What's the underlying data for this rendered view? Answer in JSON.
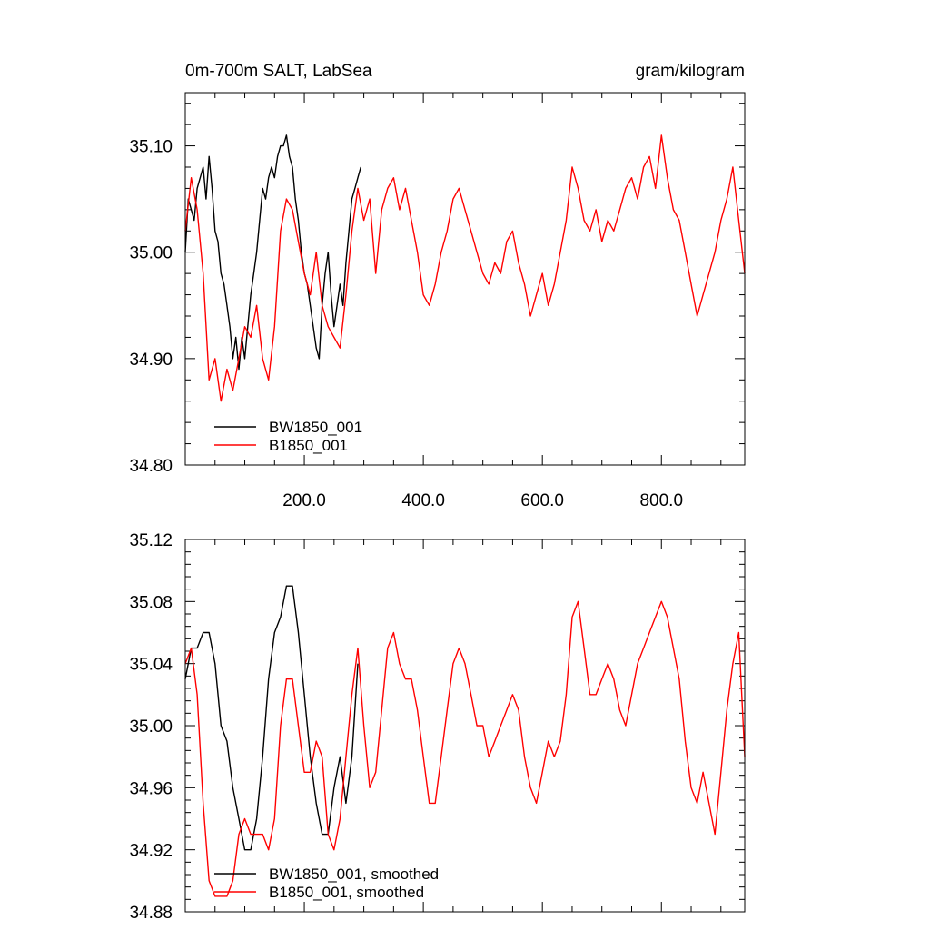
{
  "chart_data": [
    {
      "type": "line",
      "title_left": "0m-700m SALT, LabSea",
      "title_right": "gram/kilogram",
      "xlim": [
        0,
        940
      ],
      "ylim": [
        34.8,
        35.15
      ],
      "x_tick_labels": [
        "200.0",
        "400.0",
        "600.0",
        "800.0"
      ],
      "x_ticks": [
        200,
        400,
        600,
        800
      ],
      "y_tick_labels": [
        "34.80",
        "34.90",
        "35.00",
        "35.10"
      ],
      "y_ticks": [
        34.8,
        34.9,
        35.0,
        35.1
      ],
      "legend_position": "bottom-left",
      "series": [
        {
          "name": "BW1850_001",
          "color": "#000000",
          "x": [
            0,
            5,
            10,
            15,
            20,
            25,
            30,
            35,
            40,
            45,
            50,
            55,
            60,
            65,
            70,
            75,
            80,
            85,
            90,
            95,
            100,
            105,
            110,
            115,
            120,
            125,
            130,
            135,
            140,
            145,
            150,
            155,
            160,
            165,
            170,
            175,
            180,
            185,
            190,
            195,
            200,
            205,
            210,
            215,
            220,
            225,
            230,
            235,
            240,
            245,
            250,
            255,
            260,
            265,
            270,
            275,
            280,
            285,
            290,
            295
          ],
          "values": [
            35.0,
            35.05,
            35.04,
            35.03,
            35.06,
            35.07,
            35.08,
            35.05,
            35.09,
            35.06,
            35.02,
            35.01,
            34.98,
            34.97,
            34.95,
            34.93,
            34.9,
            34.92,
            34.89,
            34.92,
            34.9,
            34.93,
            34.96,
            34.98,
            35.0,
            35.03,
            35.06,
            35.05,
            35.07,
            35.08,
            35.07,
            35.09,
            35.1,
            35.1,
            35.11,
            35.09,
            35.08,
            35.05,
            35.03,
            35.0,
            34.98,
            34.97,
            34.95,
            34.93,
            34.91,
            34.9,
            34.95,
            34.98,
            35.0,
            34.96,
            34.93,
            34.95,
            34.97,
            34.95,
            34.99,
            35.02,
            35.05,
            35.06,
            35.07,
            35.08
          ]
        },
        {
          "name": "B1850_001",
          "color": "#ff0000",
          "x": [
            0,
            10,
            20,
            30,
            40,
            50,
            60,
            70,
            80,
            90,
            100,
            110,
            120,
            130,
            140,
            150,
            160,
            170,
            180,
            190,
            200,
            210,
            220,
            230,
            240,
            250,
            260,
            270,
            280,
            290,
            300,
            310,
            320,
            330,
            340,
            350,
            360,
            370,
            380,
            390,
            400,
            410,
            420,
            430,
            440,
            450,
            460,
            470,
            480,
            490,
            500,
            510,
            520,
            530,
            540,
            550,
            560,
            570,
            580,
            590,
            600,
            610,
            620,
            630,
            640,
            650,
            660,
            670,
            680,
            690,
            700,
            710,
            720,
            730,
            740,
            750,
            760,
            770,
            780,
            790,
            800,
            810,
            820,
            830,
            840,
            850,
            860,
            870,
            880,
            890,
            900,
            910,
            920,
            930,
            940
          ],
          "values": [
            35.02,
            35.07,
            35.04,
            34.98,
            34.88,
            34.9,
            34.86,
            34.89,
            34.87,
            34.9,
            34.93,
            34.92,
            34.95,
            34.9,
            34.88,
            34.93,
            35.02,
            35.05,
            35.04,
            35.01,
            34.98,
            34.96,
            35.0,
            34.95,
            34.93,
            34.92,
            34.91,
            34.96,
            35.02,
            35.06,
            35.03,
            35.05,
            34.98,
            35.04,
            35.06,
            35.07,
            35.04,
            35.06,
            35.03,
            35.0,
            34.96,
            34.95,
            34.97,
            35.0,
            35.02,
            35.05,
            35.06,
            35.04,
            35.02,
            35.0,
            34.98,
            34.97,
            34.99,
            34.98,
            35.01,
            35.02,
            34.99,
            34.97,
            34.94,
            34.96,
            34.98,
            34.95,
            34.97,
            35.0,
            35.03,
            35.08,
            35.06,
            35.03,
            35.02,
            35.04,
            35.01,
            35.03,
            35.02,
            35.04,
            35.06,
            35.07,
            35.05,
            35.08,
            35.09,
            35.06,
            35.11,
            35.07,
            35.04,
            35.03,
            35.0,
            34.97,
            34.94,
            34.96,
            34.98,
            35.0,
            35.03,
            35.05,
            35.08,
            35.03,
            34.98
          ]
        }
      ]
    },
    {
      "type": "line",
      "xlim": [
        0,
        940
      ],
      "ylim": [
        34.88,
        35.12
      ],
      "y_tick_labels": [
        "34.88",
        "34.92",
        "34.96",
        "35.00",
        "35.04",
        "35.08",
        "35.12"
      ],
      "y_ticks": [
        34.88,
        34.92,
        34.96,
        35.0,
        35.04,
        35.08,
        35.12
      ],
      "legend_position": "bottom-left",
      "series": [
        {
          "name": "BW1850_001, smoothed",
          "color": "#000000",
          "x": [
            0,
            10,
            20,
            30,
            40,
            50,
            60,
            70,
            80,
            90,
            100,
            110,
            120,
            130,
            140,
            150,
            160,
            170,
            180,
            190,
            200,
            210,
            220,
            230,
            240,
            250,
            260,
            270,
            280,
            290
          ],
          "values": [
            35.03,
            35.05,
            35.05,
            35.06,
            35.06,
            35.04,
            35.0,
            34.99,
            34.96,
            34.94,
            34.92,
            34.92,
            34.94,
            34.98,
            35.03,
            35.06,
            35.07,
            35.09,
            35.09,
            35.06,
            35.02,
            34.98,
            34.95,
            34.93,
            34.93,
            34.96,
            34.98,
            34.95,
            34.98,
            35.04
          ]
        },
        {
          "name": "B1850_001, smoothed",
          "color": "#ff0000",
          "x": [
            0,
            10,
            20,
            30,
            40,
            50,
            60,
            70,
            80,
            90,
            100,
            110,
            120,
            130,
            140,
            150,
            160,
            170,
            180,
            190,
            200,
            210,
            220,
            230,
            240,
            250,
            260,
            270,
            280,
            290,
            300,
            310,
            320,
            330,
            340,
            350,
            360,
            370,
            380,
            390,
            400,
            410,
            420,
            430,
            440,
            450,
            460,
            470,
            480,
            490,
            500,
            510,
            520,
            530,
            540,
            550,
            560,
            570,
            580,
            590,
            600,
            610,
            620,
            630,
            640,
            650,
            660,
            670,
            680,
            690,
            700,
            710,
            720,
            730,
            740,
            750,
            760,
            770,
            780,
            790,
            800,
            810,
            820,
            830,
            840,
            850,
            860,
            870,
            880,
            890,
            900,
            910,
            920,
            930,
            940
          ],
          "values": [
            35.04,
            35.05,
            35.02,
            34.95,
            34.9,
            34.89,
            34.89,
            34.89,
            34.9,
            34.93,
            34.94,
            34.93,
            34.93,
            34.93,
            34.92,
            34.94,
            35.0,
            35.03,
            35.03,
            35.0,
            34.97,
            34.97,
            34.99,
            34.98,
            34.93,
            34.92,
            34.94,
            34.98,
            35.02,
            35.05,
            35.0,
            34.96,
            34.97,
            35.01,
            35.05,
            35.06,
            35.04,
            35.03,
            35.03,
            35.01,
            34.98,
            34.95,
            34.95,
            34.98,
            35.01,
            35.04,
            35.05,
            35.04,
            35.02,
            35.0,
            35.0,
            34.98,
            34.99,
            35.0,
            35.01,
            35.02,
            35.01,
            34.98,
            34.96,
            34.95,
            34.97,
            34.99,
            34.98,
            34.99,
            35.02,
            35.07,
            35.08,
            35.05,
            35.02,
            35.02,
            35.03,
            35.04,
            35.03,
            35.01,
            35.0,
            35.02,
            35.04,
            35.05,
            35.06,
            35.07,
            35.08,
            35.07,
            35.05,
            35.03,
            34.99,
            34.96,
            34.95,
            34.97,
            34.95,
            34.93,
            34.97,
            35.01,
            35.04,
            35.06,
            34.98
          ]
        }
      ]
    }
  ]
}
